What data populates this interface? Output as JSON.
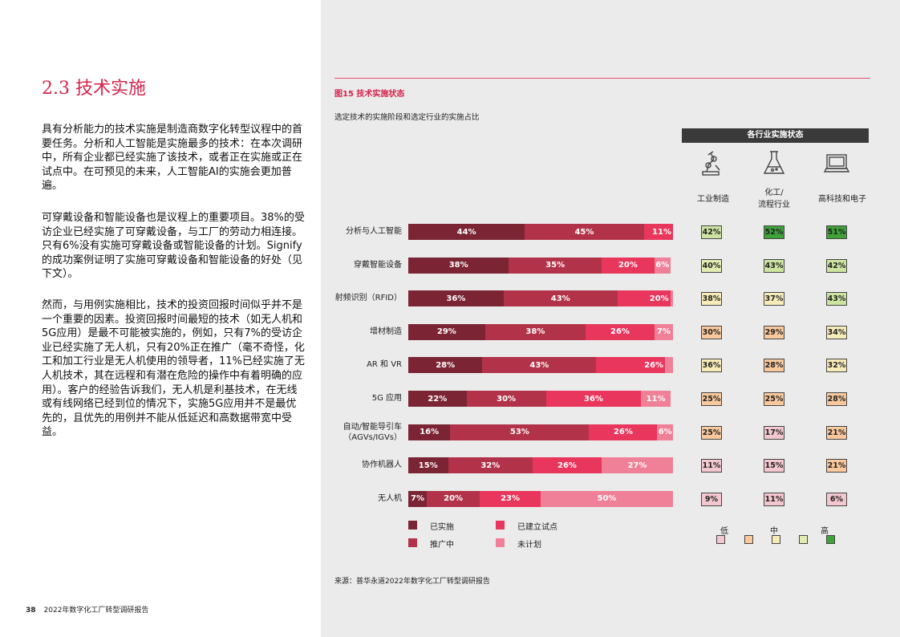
{
  "section": {
    "title": "2.3 技术实施",
    "paragraphs": [
      "具有分析能力的技术实施是制造商数字化转型议程中的首要任务。分析和人工智能是实施最多的技术：在本次调研中，所有企业都已经实施了该技术，或者正在实施或正在试点中。在可预见的未来，人工智能AI的实施会更加普遍。",
      "可穿戴设备和智能设备也是议程上的重要项目。38%的受访企业已经实施了可穿戴设备，与工厂的劳动力相连接。只有6%没有实施可穿戴设备或智能设备的计划。Signify的成功案例证明了实施可穿戴设备和智能设备的好处（见下文）。",
      "然而，与用例实施相比，技术的投资回报时间似乎并不是一个重要的因素。投资回报时间最短的技术（如无人机和5G应用）是最不可能被实施的，例如，只有7%的受访企业已经实施了无人机，只有20%正在推广（毫不奇怪，化工和加工行业是无人机使用的领导者，11%已经实施了无人机技术，其在远程和有潜在危险的操作中有着明确的应用）。客户的经验告诉我们，无人机是利基技术，在无线或有线网络已经到位的情况下，实施5G应用并不是最优先的，且优先的用例并不能从低延迟和高数据带宽中受益。"
    ]
  },
  "footer": {
    "page": "38",
    "text": "2022年数字化工厂转型调研报告"
  },
  "figure": {
    "title": "图15 技术实施状态",
    "subtitle": "选定技术的实施阶段和选定行业的实施占比",
    "industry_header": "各行业实施状态",
    "industries": [
      {
        "label_lines": [
          "工业制造"
        ],
        "icon": "robot-arm-icon"
      },
      {
        "label_lines": [
          "化工/",
          "流程行业"
        ],
        "icon": "flask-icon"
      },
      {
        "label_lines": [
          "高科技和电子"
        ],
        "icon": "laptop-icon"
      }
    ],
    "source": "来源：普华永道2022年数字化工厂转型调研报告"
  },
  "chart_data": {
    "type": "bar",
    "orientation": "horizontal",
    "stacked": true,
    "categories": [
      [
        "分析与人工智能"
      ],
      [
        "穿戴智能设备"
      ],
      [
        "射频识别（RFID）"
      ],
      [
        "增材制造"
      ],
      [
        "AR 和 VR"
      ],
      [
        "5G 应用"
      ],
      [
        "自动/智能导引车",
        "（AGVs/IGVs）"
      ],
      [
        "协作机器人"
      ],
      [
        "无人机"
      ]
    ],
    "series": [
      {
        "name": "已实施",
        "color": "#7b2434",
        "values": [
          44,
          38,
          36,
          29,
          28,
          22,
          16,
          15,
          7
        ]
      },
      {
        "name": "推广中",
        "color": "#b23349",
        "values": [
          45,
          35,
          43,
          38,
          43,
          30,
          53,
          32,
          20
        ]
      },
      {
        "name": "已建立试点",
        "color": "#e8365c",
        "values": [
          11,
          20,
          20,
          26,
          26,
          36,
          26,
          26,
          23
        ]
      },
      {
        "name": "未计划",
        "color": "#f08098",
        "values": [
          0,
          6,
          1,
          7,
          3,
          11,
          6,
          27,
          50
        ]
      }
    ],
    "labels": [
      [
        "44%",
        "45%",
        "11%",
        ""
      ],
      [
        "38%",
        "35%",
        "20%",
        "6%"
      ],
      [
        "36%",
        "43%",
        "20%",
        ""
      ],
      [
        "29%",
        "38%",
        "26%",
        "7%"
      ],
      [
        "28%",
        "43%",
        "26%",
        ""
      ],
      [
        "22%",
        "30%",
        "36%",
        "11%"
      ],
      [
        "16%",
        "53%",
        "26%",
        "6%"
      ],
      [
        "15%",
        "32%",
        "26%",
        "27%"
      ],
      [
        "7%",
        "20%",
        "23%",
        "50%"
      ]
    ],
    "xlim": [
      0,
      100
    ],
    "industry_values": [
      [
        42,
        52,
        51
      ],
      [
        40,
        43,
        42
      ],
      [
        38,
        37,
        43
      ],
      [
        30,
        29,
        34
      ],
      [
        36,
        28,
        32
      ],
      [
        25,
        25,
        28
      ],
      [
        25,
        17,
        21
      ],
      [
        11,
        15,
        21
      ],
      [
        9,
        11,
        6
      ]
    ],
    "industry_colors": [
      [
        "#cde3a0",
        "#3fa33a",
        "#3fa33a"
      ],
      [
        "#e2ecb1",
        "#cde3a0",
        "#cde3a0"
      ],
      [
        "#f7ecb8",
        "#f7ecb8",
        "#cde3a0"
      ],
      [
        "#f9c89c",
        "#f9c89c",
        "#f7ecb8"
      ],
      [
        "#f7ecb8",
        "#f9c89c",
        "#f7ecb8"
      ],
      [
        "#f9c89c",
        "#f9c89c",
        "#f9c89c"
      ],
      [
        "#f9c89c",
        "#f3c7cf",
        "#f9c89c"
      ],
      [
        "#f3c7cf",
        "#f3c7cf",
        "#f9c89c"
      ],
      [
        "#f3c7cf",
        "#f3c7cf",
        "#f3c7cf"
      ]
    ],
    "scale": {
      "labels": [
        "低",
        "中",
        "高"
      ],
      "colors": [
        "#f3c7cf",
        "#f9c89c",
        "#f7ecb8",
        "#e2ecb1",
        "#3fa33a"
      ]
    }
  }
}
